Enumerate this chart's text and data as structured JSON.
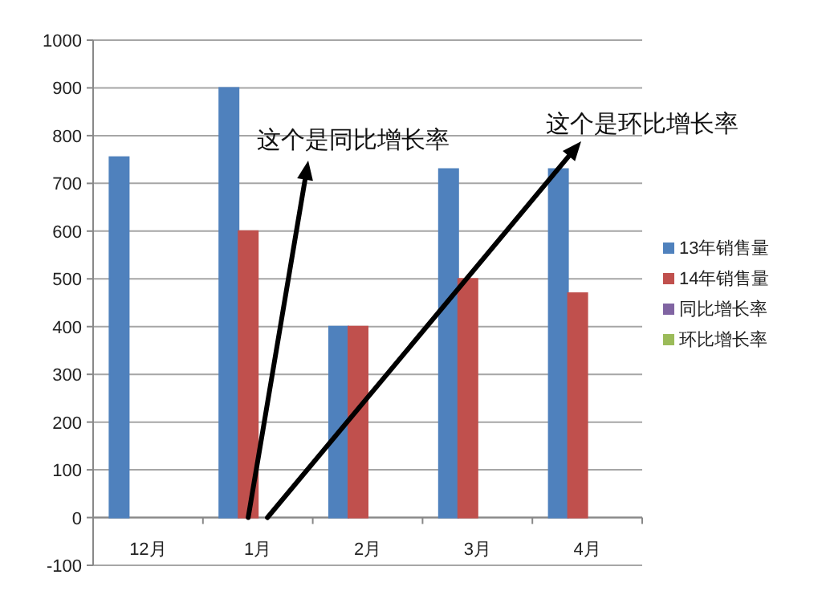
{
  "chart_data": {
    "type": "bar",
    "categories": [
      "12月",
      "1月",
      "2月",
      "3月",
      "4月"
    ],
    "series": [
      {
        "name": "13年销售量",
        "color": "#4f81bd",
        "values": [
          755,
          900,
          400,
          730,
          730
        ]
      },
      {
        "name": "14年销售量",
        "color": "#c0504d",
        "values": [
          null,
          600,
          400,
          500,
          470
        ]
      },
      {
        "name": "同比增长率",
        "color": "#8064a2",
        "values": [
          null,
          0,
          0,
          0,
          0
        ]
      },
      {
        "name": "环比增长率",
        "color": "#9bbb59",
        "values": [
          null,
          0,
          0,
          0,
          0
        ]
      }
    ],
    "ylim": [
      -100,
      1000
    ],
    "yticks": [
      -100,
      0,
      100,
      200,
      300,
      400,
      500,
      600,
      700,
      800,
      900,
      1000
    ],
    "grid": "y",
    "legend": "right",
    "annotations": [
      {
        "text": "这个是同比增长率",
        "x": "1月",
        "y": 0
      },
      {
        "text": "这个是环比增长率",
        "x": "1月",
        "y": 0
      }
    ]
  }
}
